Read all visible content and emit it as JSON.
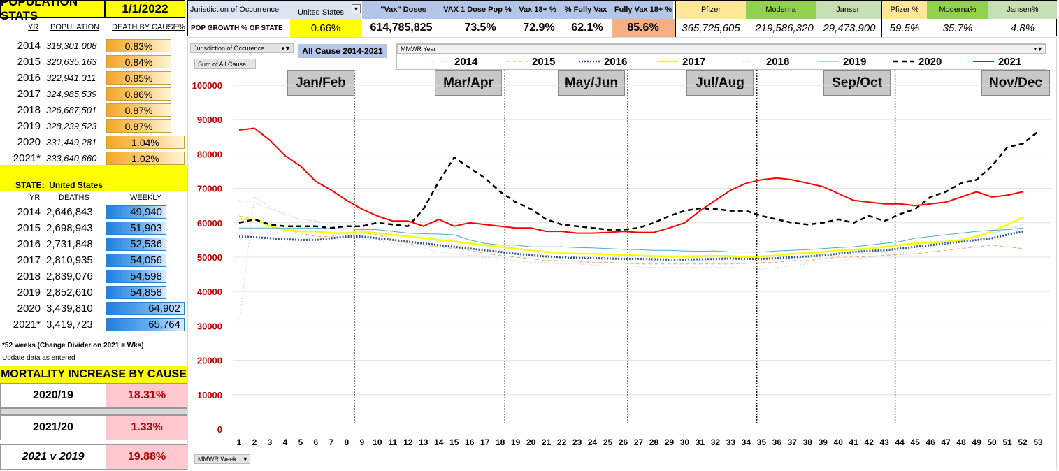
{
  "population_stats": {
    "title": "POPULATION STATS",
    "date": "1/1/2022",
    "col_yr": "YR",
    "col_population": "POPULATION",
    "col_death_by_cause": "DEATH BY CAUSE%",
    "rows": [
      {
        "yr": "2014",
        "population": "318,301,008",
        "pct": "0.83%"
      },
      {
        "yr": "2015",
        "population": "320,635,163",
        "pct": "0.84%"
      },
      {
        "yr": "2016",
        "population": "322,941,311",
        "pct": "0.85%"
      },
      {
        "yr": "2017",
        "population": "324,985,539",
        "pct": "0.86%"
      },
      {
        "yr": "2018",
        "population": "326,687,501",
        "pct": "0.87%"
      },
      {
        "yr": "2019",
        "population": "328,239,523",
        "pct": "0.87%"
      },
      {
        "yr": "2020",
        "population": "331,449,281",
        "pct": "1.04%"
      },
      {
        "yr": "2021*",
        "population": "333,640,660",
        "pct": "1.02%"
      }
    ]
  },
  "state": {
    "label": "STATE:",
    "name": "United States",
    "col_yr": "YR",
    "col_deaths": "DEATHS",
    "col_weekly": "WEEKLY",
    "rows": [
      {
        "yr": "2014",
        "deaths": "2,646,843",
        "weekly": "49,940"
      },
      {
        "yr": "2015",
        "deaths": "2,698,943",
        "weekly": "51,903"
      },
      {
        "yr": "2016",
        "deaths": "2,731,848",
        "weekly": "52,536"
      },
      {
        "yr": "2017",
        "deaths": "2,810,935",
        "weekly": "54,056"
      },
      {
        "yr": "2018",
        "deaths": "2,839,076",
        "weekly": "54,598"
      },
      {
        "yr": "2019",
        "deaths": "2,852,610",
        "weekly": "54,858"
      },
      {
        "yr": "2020",
        "deaths": "3,439,810",
        "weekly": "64,902"
      },
      {
        "yr": "2021*",
        "deaths": "3,419,723",
        "weekly": "65,764"
      }
    ],
    "note1": "*52 weeks (Change Divider on 2021 = Wks)",
    "note2": "Update data as entered"
  },
  "mortality": {
    "title": "MORTALITY INCREASE BY CAUSE",
    "rows": [
      {
        "label": "2020/19",
        "value": "18.31%"
      },
      {
        "label": "2021/20",
        "value": "1.33%"
      },
      {
        "label": "2021 v 2019",
        "value": "19.88%"
      }
    ]
  },
  "header": {
    "jurisdiction_label": "Jurisdiction of Occurrence",
    "jurisdiction_value": "United States",
    "pop_growth_label": "POP GROWTH % OF STATE",
    "pop_growth_value": "0.66%",
    "vax_doses_label": "\"Vax\" Doses",
    "vax_doses_value": "614,785,825",
    "one_dose_label": "VAX  1 Dose Pop %",
    "one_dose_value": "73.5%",
    "vax18_label": "Vax 18+ %",
    "vax18_value": "72.9%",
    "fully_label": "% Fully Vax",
    "fully_value": "62.1%",
    "fully18_label": "Fully Vax 18+ %",
    "fully18_value": "85.6%",
    "pfizer_label": "Pfizer",
    "pfizer_value": "365,725,605",
    "moderna_label": "Moderna",
    "moderna_value": "219,586,320",
    "jansen_label": "Jansen",
    "jansen_value": "29,473,900",
    "pfizer_pct_label": "Pfizer %",
    "pfizer_pct_value": "59.5%",
    "moderna_pct_label": "Moderna%",
    "moderna_pct_value": "35.7%",
    "jansen_pct_label": "Jansen%",
    "jansen_pct_value": "4.8%"
  },
  "pivot": {
    "jurisdiction_filter": "Jurisdiction of Occurence",
    "sum_label": "Sum of All  Cause",
    "all_cause_title": "All Cause 2014-2021",
    "mmwr_year": "MMWR Year",
    "mmwr_week": "MMWR Week"
  },
  "months": [
    "Jan/Feb",
    "Mar/Apr",
    "May/Jun",
    "Jul/Aug",
    "Sep/Oct",
    "Nov/Dec"
  ],
  "colors": {
    "yellow": "#ffff00",
    "red": "#ff0000",
    "axis_red": "#c00000",
    "orange": "#f4b084",
    "header_blue": "#b4c6e7"
  },
  "chart_data": {
    "type": "line",
    "title": "All Cause 2014-2021",
    "xlabel": "MMWR Week",
    "ylabel": "Sum of All  Cause",
    "ylim": [
      0,
      100000
    ],
    "yticks": [
      0,
      10000,
      20000,
      30000,
      40000,
      50000,
      60000,
      70000,
      80000,
      90000,
      100000
    ],
    "x": [
      1,
      2,
      3,
      4,
      5,
      6,
      7,
      8,
      9,
      10,
      11,
      12,
      13,
      14,
      15,
      16,
      17,
      18,
      19,
      20,
      21,
      22,
      23,
      24,
      25,
      26,
      27,
      28,
      29,
      30,
      31,
      32,
      33,
      34,
      35,
      36,
      37,
      38,
      39,
      40,
      41,
      42,
      43,
      44,
      45,
      46,
      47,
      48,
      49,
      50,
      51,
      52,
      53
    ],
    "month_dividers_after_week": [
      8.5,
      18.3,
      26.3,
      34.7,
      43.7
    ],
    "legend_position": "top",
    "series": [
      {
        "name": "2014",
        "color": "#9dc3e6",
        "dash": "1,3",
        "width": 1,
        "values": [
          30500,
          67500,
          64500,
          62500,
          61000,
          60500,
          59000,
          57000,
          56000,
          55000,
          54000,
          53500,
          52500,
          51500,
          51000,
          50500,
          50000,
          49500,
          49000,
          48500,
          48500,
          48000,
          48000,
          47800,
          47500,
          47500,
          47300,
          47000,
          47000,
          47000,
          47000,
          47000,
          47000,
          46800,
          46500,
          47000,
          47500,
          48000,
          48500,
          49000,
          49500,
          50000,
          50500,
          51000,
          52000,
          53000,
          54000,
          55000,
          56000,
          57000,
          58000,
          59500,
          null
        ]
      },
      {
        "name": "2015",
        "color": "#f4a460",
        "dash": "5,4",
        "width": 1,
        "values": [
          62000,
          61000,
          59000,
          58000,
          57000,
          56000,
          56000,
          57000,
          57000,
          56500,
          55000,
          54000,
          53500,
          53000,
          52500,
          52000,
          51000,
          50500,
          50000,
          49500,
          49000,
          49000,
          48800,
          48500,
          48500,
          48300,
          48000,
          48000,
          48000,
          48000,
          48000,
          48000,
          48000,
          48200,
          48500,
          48500,
          49000,
          49000,
          49500,
          50000,
          50000,
          50200,
          50500,
          50800,
          51000,
          51500,
          52000,
          52500,
          53000,
          53500,
          53000,
          52500,
          null
        ]
      },
      {
        "name": "2016",
        "color": "#2f5597",
        "dash": "2,2",
        "width": 3,
        "values": [
          56000,
          55800,
          55500,
          55200,
          55000,
          55000,
          55500,
          56000,
          56000,
          55500,
          55000,
          54500,
          54000,
          53500,
          53000,
          52500,
          52000,
          51500,
          51000,
          50500,
          50200,
          50000,
          49800,
          49700,
          49600,
          49500,
          49500,
          49400,
          49300,
          49300,
          49400,
          49500,
          49600,
          49500,
          49500,
          49700,
          50000,
          50200,
          50500,
          51000,
          51500,
          51800,
          52000,
          52500,
          53000,
          53500,
          54000,
          54500,
          55000,
          55500,
          56500,
          57500,
          null
        ]
      },
      {
        "name": "2017",
        "color": "#ffff00",
        "dash": "",
        "width": 2.5,
        "values": [
          61000,
          61000,
          59000,
          58000,
          57500,
          57500,
          57000,
          57000,
          57500,
          57000,
          56500,
          56000,
          55500,
          55000,
          54500,
          54000,
          53500,
          53000,
          52500,
          52000,
          51500,
          51200,
          51000,
          51000,
          50800,
          50600,
          50500,
          50300,
          50200,
          50200,
          50300,
          50400,
          50300,
          50000,
          50200,
          50500,
          51000,
          51200,
          51500,
          52000,
          52200,
          52500,
          53000,
          53500,
          54000,
          54200,
          54500,
          55000,
          56000,
          57500,
          59500,
          61500,
          null
        ]
      },
      {
        "name": "2018",
        "color": "#bdd7ee",
        "dash": "1,2",
        "width": 1.2,
        "values": [
          66500,
          66000,
          64000,
          62500,
          61000,
          60500,
          60000,
          59000,
          58500,
          58000,
          57000,
          56500,
          56000,
          55500,
          55000,
          54000,
          53000,
          52000,
          51500,
          51000,
          50500,
          50200,
          50000,
          49800,
          49600,
          49500,
          49400,
          49300,
          49200,
          49100,
          49100,
          49000,
          49000,
          49000,
          49000,
          49200,
          49500,
          50000,
          50500,
          51000,
          51000,
          51200,
          51500,
          52000,
          52500,
          53000,
          54000,
          55000,
          56000,
          57000,
          58000,
          59500,
          null
        ]
      },
      {
        "name": "2019",
        "color": "#4bacc6",
        "dash": "",
        "width": 1,
        "values": [
          58500,
          58500,
          58500,
          58500,
          58500,
          58500,
          58300,
          58300,
          58000,
          58000,
          57500,
          57000,
          56800,
          56700,
          56500,
          55000,
          54000,
          53500,
          53500,
          53000,
          53000,
          53000,
          52800,
          52700,
          52500,
          52300,
          52200,
          52000,
          52000,
          51800,
          51700,
          51800,
          51500,
          51500,
          51500,
          51800,
          52000,
          52200,
          52500,
          52800,
          53000,
          53500,
          54000,
          54500,
          55500,
          56000,
          56500,
          57000,
          57500,
          57800,
          58000,
          58500,
          null
        ]
      },
      {
        "name": "2020",
        "color": "#000000",
        "dash": "7,5",
        "width": 2.5,
        "values": [
          60000,
          61000,
          59500,
          59000,
          59000,
          59000,
          58500,
          59000,
          59000,
          60000,
          59500,
          59000,
          64000,
          72000,
          79000,
          76000,
          73000,
          69000,
          66000,
          64000,
          61000,
          59500,
          59000,
          58500,
          58000,
          58000,
          58500,
          60000,
          62000,
          63500,
          64200,
          64000,
          63500,
          63500,
          62000,
          61000,
          60000,
          59500,
          60000,
          61000,
          60000,
          62000,
          60500,
          62500,
          64000,
          67500,
          69000,
          71500,
          72500,
          76500,
          82000,
          83000,
          86500
        ]
      },
      {
        "name": "2021",
        "color": "#ff0000",
        "dash": "",
        "width": 2,
        "values": [
          87000,
          87500,
          84000,
          79500,
          76500,
          72000,
          69500,
          66500,
          64000,
          62000,
          60500,
          60500,
          59000,
          61000,
          59000,
          60000,
          59500,
          59000,
          58500,
          58500,
          57500,
          57500,
          57000,
          57000,
          57200,
          57500,
          57200,
          57200,
          58500,
          60000,
          63500,
          66500,
          69500,
          71500,
          72500,
          73000,
          72500,
          71500,
          70500,
          68500,
          66500,
          66000,
          65500,
          65500,
          65000,
          65500,
          66000,
          67500,
          69000,
          67500,
          68000,
          69000,
          null
        ]
      }
    ]
  }
}
